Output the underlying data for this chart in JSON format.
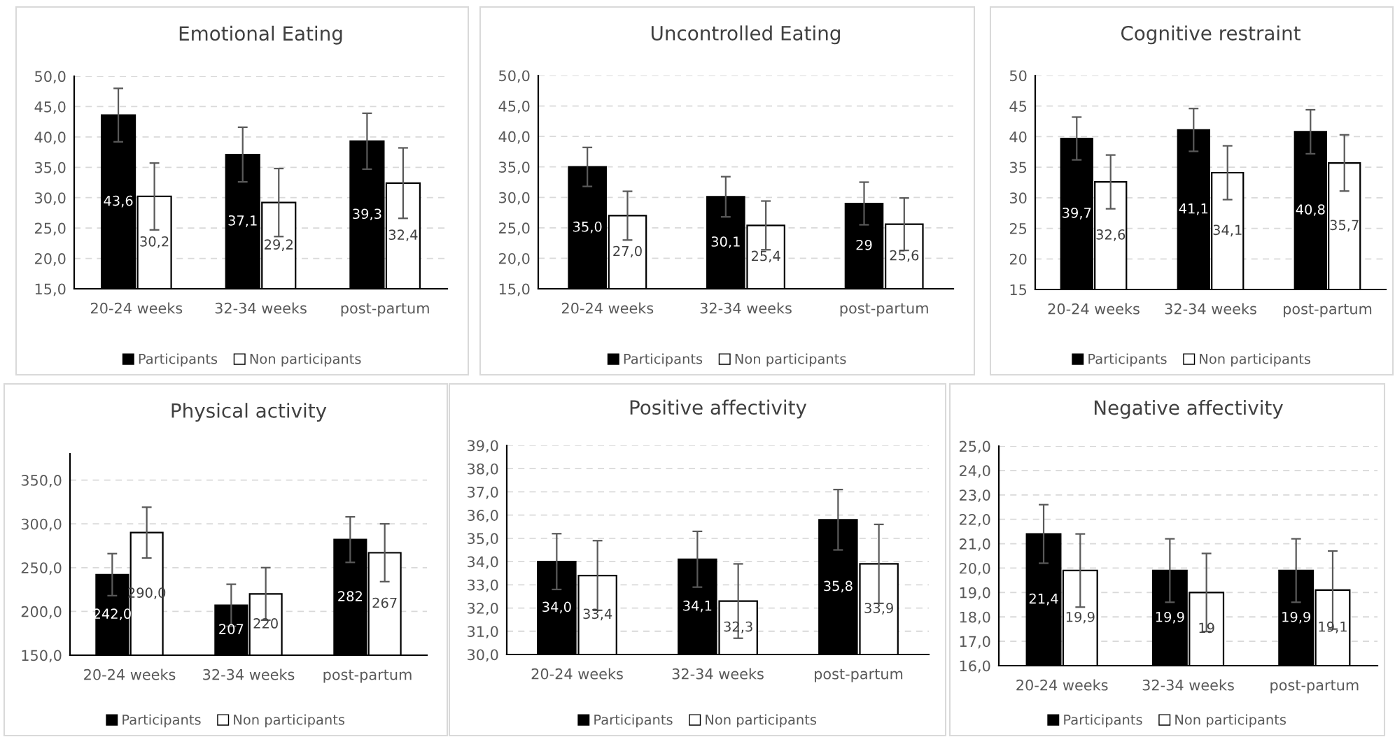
{
  "chart_data": [
    {
      "type": "bar",
      "title": "Emotional Eating",
      "categories": [
        "20-24 weeks",
        "32-34 weeks",
        "post-partum"
      ],
      "series": [
        {
          "name": "Participants",
          "color": "#000000",
          "values": [
            43.6,
            37.1,
            39.3
          ],
          "errors": [
            4.4,
            4.5,
            4.6
          ],
          "value_labels": [
            "43,6",
            "37,1",
            "39,3"
          ]
        },
        {
          "name": "Non participants",
          "color": "#ffffff",
          "values": [
            30.2,
            29.2,
            32.4
          ],
          "errors": [
            5.5,
            5.6,
            5.8
          ],
          "value_labels": [
            "30,2",
            "29,2",
            "32,4"
          ]
        }
      ],
      "ylim": [
        15,
        50
      ],
      "yticks": [
        {
          "value": 15,
          "label": "15,0"
        },
        {
          "value": 20,
          "label": "20,0"
        },
        {
          "value": 25,
          "label": "25,0"
        },
        {
          "value": 30,
          "label": "30,0"
        },
        {
          "value": 35,
          "label": "35,0"
        },
        {
          "value": 40,
          "label": "40,0"
        },
        {
          "value": 45,
          "label": "45,0"
        },
        {
          "value": 50,
          "label": "50,0"
        }
      ],
      "grid": "y",
      "legend": "bottom"
    },
    {
      "type": "bar",
      "title": "Uncontrolled Eating",
      "categories": [
        "20-24 weeks",
        "32-34 weeks",
        "post-partum"
      ],
      "series": [
        {
          "name": "Participants",
          "color": "#000000",
          "values": [
            35.0,
            30.1,
            29
          ],
          "errors": [
            3.2,
            3.3,
            3.5
          ],
          "value_labels": [
            "35,0",
            "30,1",
            "29"
          ]
        },
        {
          "name": "Non participants",
          "color": "#ffffff",
          "values": [
            27.0,
            25.4,
            25.6
          ],
          "errors": [
            4.0,
            4.0,
            4.3
          ],
          "value_labels": [
            "27,0",
            "25,4",
            "25,6"
          ]
        }
      ],
      "ylim": [
        15,
        50
      ],
      "yticks": [
        {
          "value": 15,
          "label": "15,0"
        },
        {
          "value": 20,
          "label": "20,0"
        },
        {
          "value": 25,
          "label": "25,0"
        },
        {
          "value": 30,
          "label": "30,0"
        },
        {
          "value": 35,
          "label": "35,0"
        },
        {
          "value": 40,
          "label": "40,0"
        },
        {
          "value": 45,
          "label": "45,0"
        },
        {
          "value": 50,
          "label": "50,0"
        }
      ],
      "grid": "y",
      "legend": "bottom"
    },
    {
      "type": "bar",
      "title": "Cognitive restraint",
      "categories": [
        "20-24 weeks",
        "32-34 weeks",
        "post-partum"
      ],
      "series": [
        {
          "name": "Participants",
          "color": "#000000",
          "values": [
            39.7,
            41.1,
            40.8
          ],
          "errors": [
            3.5,
            3.5,
            3.6
          ],
          "value_labels": [
            "39,7",
            "41,1",
            "40,8"
          ]
        },
        {
          "name": "Non participants",
          "color": "#ffffff",
          "values": [
            32.6,
            34.1,
            35.7
          ],
          "errors": [
            4.4,
            4.4,
            4.6
          ],
          "value_labels": [
            "32,6",
            "34,1",
            "35,7"
          ]
        }
      ],
      "ylim": [
        15,
        50
      ],
      "yticks": [
        15,
        20,
        25,
        30,
        35,
        40,
        45,
        50
      ],
      "grid": "y",
      "legend": "bottom"
    },
    {
      "type": "bar",
      "title": "Physical activity",
      "categories": [
        "20-24 weeks",
        "32-34 weeks",
        "post-partum"
      ],
      "series": [
        {
          "name": "Participants",
          "color": "#000000",
          "values": [
            242.0,
            207,
            282
          ],
          "errors": [
            24,
            24,
            26
          ],
          "value_labels": [
            "242,0",
            "207",
            "282"
          ]
        },
        {
          "name": "Non participants",
          "color": "#ffffff",
          "values": [
            290.0,
            220,
            267
          ],
          "errors": [
            29,
            30,
            33
          ],
          "value_labels": [
            "290,0",
            "220",
            "267"
          ]
        }
      ],
      "ylim": [
        150,
        380
      ],
      "yticks": [
        {
          "value": 150,
          "label": "150,0"
        },
        {
          "value": 200,
          "label": "200,0"
        },
        {
          "value": 250,
          "label": "250,0"
        },
        {
          "value": 300,
          "label": "300,0"
        },
        {
          "value": 350,
          "label": "350,0"
        }
      ],
      "grid": "y",
      "legend": "bottom"
    },
    {
      "type": "bar",
      "title": "Positive affectivity",
      "categories": [
        "20-24 weeks",
        "32-34 weeks",
        "post-partum"
      ],
      "series": [
        {
          "name": "Participants",
          "color": "#000000",
          "values": [
            34.0,
            34.1,
            35.8
          ],
          "errors": [
            1.2,
            1.2,
            1.3
          ],
          "value_labels": [
            "34,0",
            "34,1",
            "35,8"
          ]
        },
        {
          "name": "Non participants",
          "color": "#ffffff",
          "values": [
            33.4,
            32.3,
            33.9
          ],
          "errors": [
            1.5,
            1.6,
            1.7
          ],
          "value_labels": [
            "33,4",
            "32,3",
            "33,9"
          ]
        }
      ],
      "ylim": [
        30,
        39
      ],
      "yticks": [
        {
          "value": 30,
          "label": "30,0"
        },
        {
          "value": 31,
          "label": "31,0"
        },
        {
          "value": 32,
          "label": "32,0"
        },
        {
          "value": 33,
          "label": "33,0"
        },
        {
          "value": 34,
          "label": "34,0"
        },
        {
          "value": 35,
          "label": "35,0"
        },
        {
          "value": 36,
          "label": "36,0"
        },
        {
          "value": 37,
          "label": "37,0"
        },
        {
          "value": 38,
          "label": "38,0"
        },
        {
          "value": 39,
          "label": "39,0"
        }
      ],
      "grid": "y",
      "legend": "bottom"
    },
    {
      "type": "bar",
      "title": "Negative affectivity",
      "categories": [
        "20-24 weeks",
        "32-34 weeks",
        "post-partum"
      ],
      "series": [
        {
          "name": "Participants",
          "color": "#000000",
          "values": [
            21.4,
            19.9,
            19.9
          ],
          "errors": [
            1.2,
            1.3,
            1.3
          ],
          "value_labels": [
            "21,4",
            "19,9",
            "19,9"
          ]
        },
        {
          "name": "Non participants",
          "color": "#ffffff",
          "values": [
            19.9,
            19,
            19.1
          ],
          "errors": [
            1.5,
            1.6,
            1.6
          ],
          "value_labels": [
            "19,9",
            "19",
            "19,1"
          ]
        }
      ],
      "ylim": [
        16,
        25
      ],
      "yticks": [
        {
          "value": 16,
          "label": "16,0"
        },
        {
          "value": 17,
          "label": "17,0"
        },
        {
          "value": 18,
          "label": "18,0"
        },
        {
          "value": 19,
          "label": "19,0"
        },
        {
          "value": 20,
          "label": "20,0"
        },
        {
          "value": 21,
          "label": "21,0"
        },
        {
          "value": 22,
          "label": "22,0"
        },
        {
          "value": 23,
          "label": "23,0"
        },
        {
          "value": 24,
          "label": "24,0"
        },
        {
          "value": 25,
          "label": "25,0"
        }
      ],
      "grid": "y",
      "legend": "bottom"
    }
  ]
}
